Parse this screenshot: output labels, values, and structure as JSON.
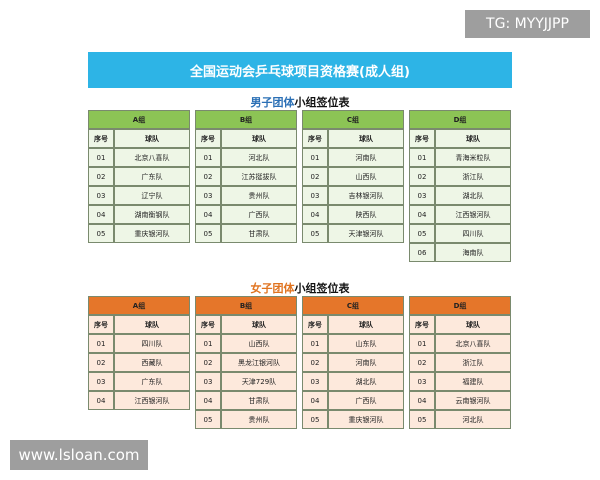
{
  "watermark_top": "TG: MYYJJPP",
  "watermark_bottom": "www.lsloan.com",
  "header": {
    "title": "全国运动会乒乓球项目资格赛(成人组)"
  },
  "sections": [
    {
      "title_highlight": "男子团体",
      "title_rest": "小组签位表",
      "groups": [
        {
          "name": "A组",
          "columns": [
            "序号",
            "球队"
          ],
          "rows": [
            [
              "01",
              "北京八喜队"
            ],
            [
              "02",
              "广东队"
            ],
            [
              "03",
              "辽宁队"
            ],
            [
              "04",
              "湖南衡钢队"
            ],
            [
              "05",
              "重庆银河队"
            ]
          ]
        },
        {
          "name": "B组",
          "columns": [
            "序号",
            "球队"
          ],
          "rows": [
            [
              "01",
              "河北队"
            ],
            [
              "02",
              "江苏挺拔队"
            ],
            [
              "03",
              "贵州队"
            ],
            [
              "04",
              "广西队"
            ],
            [
              "05",
              "甘肃队"
            ]
          ]
        },
        {
          "name": "C组",
          "columns": [
            "序号",
            "球队"
          ],
          "rows": [
            [
              "01",
              "河南队"
            ],
            [
              "02",
              "山西队"
            ],
            [
              "03",
              "吉林银河队"
            ],
            [
              "04",
              "陕西队"
            ],
            [
              "05",
              "天津银河队"
            ]
          ]
        },
        {
          "name": "D组",
          "columns": [
            "序号",
            "球队"
          ],
          "rows": [
            [
              "01",
              "青海米粒队"
            ],
            [
              "02",
              "浙江队"
            ],
            [
              "03",
              "湖北队"
            ],
            [
              "04",
              "江西银河队"
            ],
            [
              "05",
              "四川队"
            ],
            [
              "06",
              "海南队"
            ]
          ]
        }
      ]
    },
    {
      "title_highlight": "女子团体",
      "title_rest": "小组签位表",
      "groups": [
        {
          "name": "A组",
          "columns": [
            "序号",
            "球队"
          ],
          "rows": [
            [
              "01",
              "四川队"
            ],
            [
              "02",
              "西藏队"
            ],
            [
              "03",
              "广东队"
            ],
            [
              "04",
              "江西银河队"
            ]
          ]
        },
        {
          "name": "B组",
          "columns": [
            "序号",
            "球队"
          ],
          "rows": [
            [
              "01",
              "山西队"
            ],
            [
              "02",
              "黑龙江银河队"
            ],
            [
              "03",
              "天津729队"
            ],
            [
              "04",
              "甘肃队"
            ],
            [
              "05",
              "贵州队"
            ]
          ]
        },
        {
          "name": "C组",
          "columns": [
            "序号",
            "球队"
          ],
          "rows": [
            [
              "01",
              "山东队"
            ],
            [
              "02",
              "河南队"
            ],
            [
              "03",
              "湖北队"
            ],
            [
              "04",
              "广西队"
            ],
            [
              "05",
              "重庆银河队"
            ]
          ]
        },
        {
          "name": "D组",
          "columns": [
            "序号",
            "球队"
          ],
          "rows": [
            [
              "01",
              "北京八喜队"
            ],
            [
              "02",
              "浙江队"
            ],
            [
              "03",
              "福建队"
            ],
            [
              "04",
              "云南银河队"
            ],
            [
              "05",
              "河北队"
            ]
          ]
        }
      ]
    }
  ]
}
